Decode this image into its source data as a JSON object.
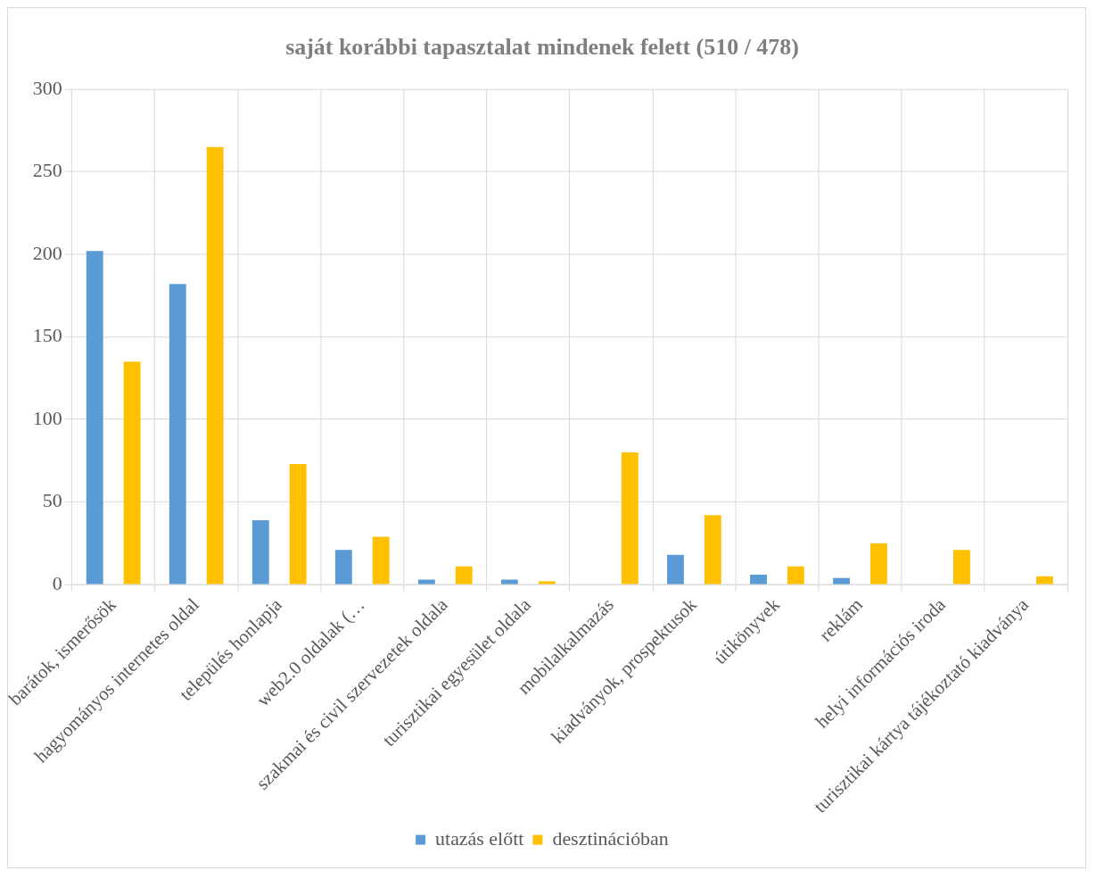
{
  "chart_data": {
    "type": "bar",
    "title": "saját korábbi tapasztalat mindenek felett (510 / 478)",
    "categories": [
      "barátok, ismerősök",
      "hagyományos internetes oldal",
      "település honlapja",
      "web2.0 oldalak (…",
      "szakmai és civil szervezetek oldala",
      "turisztikai egyesület oldala",
      "mobilalkalmazás",
      "kiadványok, prospektusok",
      "útikönyvek",
      "reklám",
      "helyi információs iroda",
      "turisztikai kártya tájékoztató kiadványa"
    ],
    "series": [
      {
        "name": "utazás előtt",
        "color": "#5b9bd5",
        "values": [
          202,
          182,
          39,
          21,
          3,
          3,
          0,
          18,
          6,
          4,
          0,
          0
        ]
      },
      {
        "name": "desztinációban",
        "color": "#ffc000",
        "values": [
          135,
          265,
          73,
          29,
          11,
          2,
          80,
          42,
          11,
          25,
          21,
          5
        ]
      }
    ],
    "ylim": [
      0,
      300
    ],
    "yticks": [
      0,
      50,
      100,
      150,
      200,
      250,
      300
    ],
    "grid": true,
    "legend": "bottom"
  }
}
